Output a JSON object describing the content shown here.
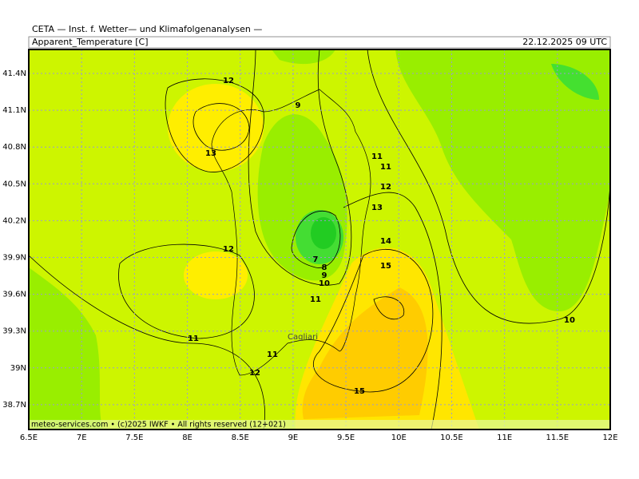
{
  "header": {
    "source": "CETA — Inst. f. Wetter— und Klimafolgenanalysen —",
    "variable": "Apparent_Temperature [C]",
    "time": "22.12.2025 09 UTC"
  },
  "map": {
    "lon_labels": [
      "6.5E",
      "7E",
      "7.5E",
      "8E",
      "8.5E",
      "9E",
      "9.5E",
      "10E",
      "10.5E",
      "11E",
      "11.5E",
      "12E"
    ],
    "lat_labels": [
      "41.4N",
      "41.1N",
      "40.8N",
      "40.5N",
      "40.2N",
      "39.9N",
      "39.6N",
      "39.3N",
      "39N",
      "38.7N"
    ],
    "contour_labels": [
      12,
      13,
      9,
      11,
      11,
      12,
      13,
      14,
      15,
      7,
      8,
      9,
      10,
      11,
      12,
      11,
      11,
      12,
      15,
      10
    ],
    "place_labels": [
      "Cagliari"
    ]
  },
  "footer": "meteo-services.com • (c)2025 IWKF • All rights reserved (12+021)"
}
